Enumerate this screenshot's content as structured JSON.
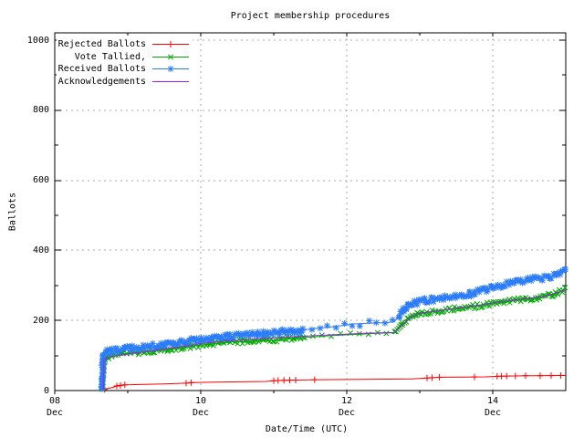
{
  "title": "Project membership procedures",
  "axes": {
    "y_label": "Ballots",
    "x_label": "Date/Time (UTC)",
    "y_ticks": [
      0,
      200,
      400,
      600,
      800,
      1000
    ],
    "y_minor_ticks": [
      100,
      300,
      500,
      700,
      900
    ],
    "x_ticks": [
      {
        "label": "08",
        "sublabel": "Dec",
        "t": 0
      },
      {
        "label": "10",
        "sublabel": "Dec",
        "t": 2
      },
      {
        "label": "12",
        "sublabel": "Dec",
        "t": 4
      },
      {
        "label": "14",
        "sublabel": "Dec",
        "t": 6
      }
    ],
    "x_minor_ticks": [
      1,
      3,
      5
    ],
    "grid_color": "#a8a8a8",
    "axis_color": "#000000"
  },
  "chart_data": {
    "type": "line",
    "title": "Project membership procedures",
    "xlabel": "Date/Time (UTC)",
    "ylabel": "Ballots",
    "ylim": [
      0,
      1021
    ],
    "x_range_days": "Dec 08 00:00 to Dec 15 00:00 (UTC)",
    "grid": true,
    "legend_position": "top-left-inside",
    "series": [
      {
        "name": "Rejected Ballots",
        "color": "#ff0000",
        "marker": "plus",
        "points": [
          [
            0.655,
            0
          ],
          [
            0.66,
            2
          ],
          [
            0.7,
            5
          ],
          [
            0.8,
            9
          ],
          [
            0.85,
            13
          ],
          [
            0.95,
            16
          ],
          [
            1.1,
            17
          ],
          [
            1.5,
            19
          ],
          [
            1.8,
            21
          ],
          [
            1.9,
            23
          ],
          [
            2.2,
            24
          ],
          [
            2.9,
            26
          ],
          [
            3,
            28
          ],
          [
            3.1,
            29
          ],
          [
            3.3,
            30
          ],
          [
            3.6,
            31
          ],
          [
            4.2,
            32
          ],
          [
            4.9,
            33
          ],
          [
            5.1,
            36
          ],
          [
            5.3,
            38
          ],
          [
            5.9,
            39
          ],
          [
            6.1,
            41
          ],
          [
            6.4,
            42
          ],
          [
            7,
            43
          ]
        ],
        "marker_ts": [
          0.68,
          0.85,
          0.9,
          0.96,
          1.8,
          1.87,
          3,
          3.06,
          3.14,
          3.22,
          3.3,
          3.56,
          5.1,
          5.17,
          5.27,
          5.75,
          6.06,
          6.12,
          6.19,
          6.31,
          6.45,
          6.65,
          6.8,
          6.93
        ]
      },
      {
        "name": "Vote Tallied,",
        "color": "#00ab00",
        "marker": "cross",
        "dense": {
          "step": 1.8,
          "jitter_y": 2.4,
          "jitter_x": 1,
          "sparse_from": 3.4,
          "sparse_to": 4.6,
          "sparse_step": 10
        },
        "points": [
          [
            0.655,
            0
          ],
          [
            0.66,
            30
          ],
          [
            0.665,
            60
          ],
          [
            0.675,
            85
          ],
          [
            0.69,
            93
          ],
          [
            0.73,
            97
          ],
          [
            0.8,
            101
          ],
          [
            1,
            106
          ],
          [
            1.2,
            110
          ],
          [
            1.4,
            114
          ],
          [
            1.6,
            119
          ],
          [
            1.8,
            124
          ],
          [
            2,
            130
          ],
          [
            2.2,
            134
          ],
          [
            2.4,
            138
          ],
          [
            2.6,
            140
          ],
          [
            2.8,
            142
          ],
          [
            3,
            144
          ],
          [
            3.2,
            147
          ],
          [
            3.4,
            151
          ],
          [
            3.6,
            154
          ],
          [
            3.8,
            157
          ],
          [
            4,
            159
          ],
          [
            4.2,
            161
          ],
          [
            4.4,
            163
          ],
          [
            4.65,
            165
          ],
          [
            4.7,
            178
          ],
          [
            4.78,
            198
          ],
          [
            4.88,
            210
          ],
          [
            5,
            219
          ],
          [
            5.2,
            226
          ],
          [
            5.4,
            231
          ],
          [
            5.6,
            236
          ],
          [
            5.8,
            241
          ],
          [
            6,
            248
          ],
          [
            6.2,
            254
          ],
          [
            6.4,
            259
          ],
          [
            6.6,
            264
          ],
          [
            6.8,
            272
          ],
          [
            6.9,
            280
          ],
          [
            7,
            291
          ]
        ]
      },
      {
        "name": "Received Ballots",
        "color": "#2b7cf8",
        "marker": "star",
        "dense": {
          "step": 1.6,
          "jitter_y": 3,
          "jitter_x": 1,
          "sparse_from": 3.45,
          "sparse_to": 4.62,
          "sparse_step": 9
        },
        "points": [
          [
            0.645,
            0
          ],
          [
            0.65,
            40
          ],
          [
            0.655,
            75
          ],
          [
            0.665,
            95
          ],
          [
            0.68,
            105
          ],
          [
            0.72,
            110
          ],
          [
            0.8,
            114
          ],
          [
            1,
            119
          ],
          [
            1.2,
            124
          ],
          [
            1.4,
            128
          ],
          [
            1.6,
            133
          ],
          [
            1.8,
            139
          ],
          [
            2,
            147
          ],
          [
            2.2,
            151
          ],
          [
            2.4,
            155
          ],
          [
            2.6,
            158
          ],
          [
            2.8,
            161
          ],
          [
            3,
            164
          ],
          [
            3.2,
            168
          ],
          [
            3.4,
            173
          ],
          [
            3.6,
            178
          ],
          [
            3.8,
            182
          ],
          [
            3.95,
            186
          ],
          [
            4.1,
            190
          ],
          [
            4.3,
            192
          ],
          [
            4.55,
            194
          ],
          [
            4.65,
            196
          ],
          [
            4.7,
            210
          ],
          [
            4.78,
            230
          ],
          [
            4.88,
            245
          ],
          [
            5,
            254
          ],
          [
            5.15,
            259
          ],
          [
            5.3,
            263
          ],
          [
            5.5,
            268
          ],
          [
            5.7,
            276
          ],
          [
            5.85,
            285
          ],
          [
            6,
            294
          ],
          [
            6.15,
            301
          ],
          [
            6.3,
            307
          ],
          [
            6.5,
            315
          ],
          [
            6.7,
            322
          ],
          [
            6.85,
            328
          ],
          [
            6.93,
            334
          ],
          [
            7,
            341
          ]
        ]
      },
      {
        "name": "Acknowledgements",
        "color": "#a020f0",
        "marker": "none",
        "points": [
          [
            0.665,
            0
          ],
          [
            0.67,
            40
          ],
          [
            0.675,
            88
          ],
          [
            0.7,
            92
          ],
          [
            0.8,
            98
          ],
          [
            1,
            104
          ],
          [
            1.3,
            112
          ],
          [
            1.6,
            122
          ],
          [
            1.9,
            130
          ],
          [
            2,
            134
          ],
          [
            2.3,
            141
          ],
          [
            2.6,
            145
          ],
          [
            3,
            150
          ],
          [
            3.4,
            155
          ],
          [
            3.8,
            159
          ],
          [
            4.2,
            163
          ],
          [
            4.65,
            166
          ],
          [
            4.75,
            185
          ],
          [
            4.9,
            213
          ],
          [
            5,
            221
          ],
          [
            5.3,
            229
          ],
          [
            5.6,
            238
          ],
          [
            5.9,
            246
          ],
          [
            6.1,
            254
          ],
          [
            6.4,
            261
          ],
          [
            6.7,
            269
          ],
          [
            6.9,
            280
          ],
          [
            7,
            288
          ]
        ]
      }
    ]
  }
}
